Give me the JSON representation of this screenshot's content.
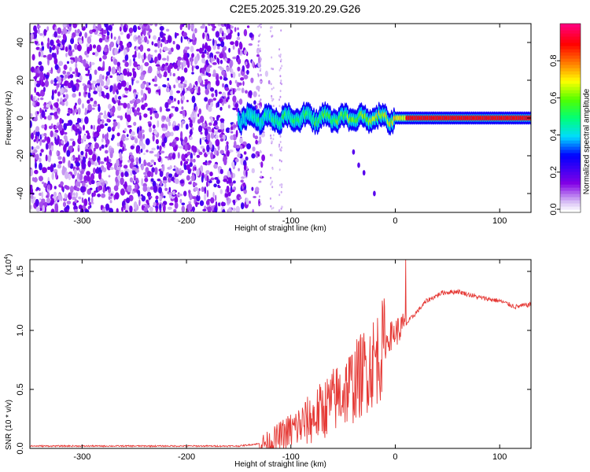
{
  "title": "C2E5.2025.319.20.29.G26",
  "chart_data": [
    {
      "type": "heatmap",
      "name": "spectrogram",
      "xlabel": "Height of straight line (km)",
      "ylabel": "Frequency (Hz)",
      "xlim": [
        -350,
        130
      ],
      "ylim": [
        -50,
        50
      ],
      "xticks": [
        -300,
        -200,
        -100,
        0,
        100
      ],
      "yticks": [
        -40,
        -20,
        0,
        20,
        40
      ],
      "colorbar": {
        "label": "Normalized spectral amplitude",
        "range": [
          0,
          1
        ],
        "ticks": [
          "0.0",
          "0.2",
          "0.4",
          "0.6",
          "0.8"
        ],
        "tick_values": [
          0.0,
          0.2,
          0.4,
          0.6,
          0.8
        ]
      },
      "regions": [
        {
          "description": "noise",
          "x_range": [
            -350,
            -150
          ],
          "y_range": [
            -50,
            50
          ],
          "amplitude": 0.15
        },
        {
          "description": "signal",
          "x_range": [
            -150,
            130
          ],
          "y_center": 0,
          "amplitude_start": 0.4,
          "amplitude_end": 0.95
        }
      ]
    },
    {
      "type": "line",
      "name": "snr",
      "xlabel": "Height of straight line (km)",
      "ylabel": "SNR (10 * v/v)",
      "multiplier_label": "(x10",
      "multiplier_exp": "4",
      "multiplier_close": ")",
      "xlim": [
        -350,
        130
      ],
      "ylim": [
        0,
        1.6
      ],
      "xticks": [
        -300,
        -200,
        -100,
        0,
        100
      ],
      "yticks": [
        "0.0",
        "0.5",
        "1.0",
        "1.5"
      ],
      "ytick_values": [
        0.0,
        0.5,
        1.0,
        1.5
      ],
      "series_color": "#e53935",
      "profile": [
        [
          -350,
          0.02
        ],
        [
          -150,
          0.02
        ],
        [
          -120,
          0.05
        ],
        [
          -100,
          0.15
        ],
        [
          -80,
          0.25
        ],
        [
          -60,
          0.4
        ],
        [
          -40,
          0.55
        ],
        [
          -25,
          0.7
        ],
        [
          -15,
          0.8
        ],
        [
          -5,
          0.95
        ],
        [
          10,
          1.05
        ],
        [
          20,
          1.15
        ],
        [
          30,
          1.25
        ],
        [
          45,
          1.32
        ],
        [
          60,
          1.33
        ],
        [
          80,
          1.28
        ],
        [
          100,
          1.25
        ],
        [
          115,
          1.2
        ],
        [
          130,
          1.22
        ]
      ],
      "spike": [
        10,
        1.6
      ]
    }
  ]
}
